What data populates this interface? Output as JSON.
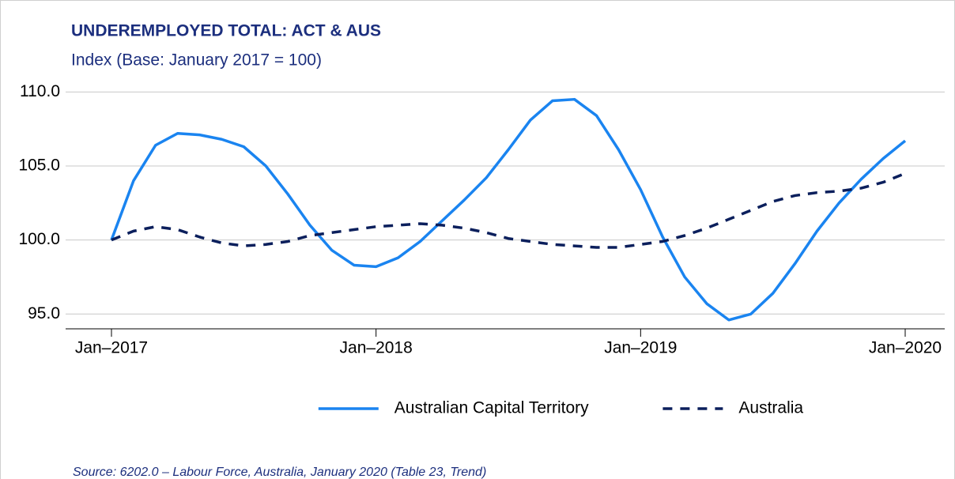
{
  "chart_data": {
    "type": "line",
    "title": "UNDEREMPLOYED TOTAL: ACT & AUS",
    "subtitle": "Index (Base: January 2017 = 100)",
    "source": "Source: 6202.0 – Labour Force, Australia, January 2020 (Table 23, Trend)",
    "categories": [
      "Jan–2017",
      null,
      null,
      null,
      null,
      null,
      null,
      null,
      null,
      null,
      null,
      null,
      "Jan–2018",
      null,
      null,
      null,
      null,
      null,
      null,
      null,
      null,
      null,
      null,
      null,
      "Jan–2019",
      null,
      null,
      null,
      null,
      null,
      null,
      null,
      null,
      null,
      null,
      null,
      "Jan–2020"
    ],
    "series": [
      {
        "name": "Australian Capital Territory",
        "color": "#1a84f0",
        "dashed": false,
        "values": [
          100.0,
          104.0,
          106.4,
          107.2,
          107.1,
          106.8,
          106.3,
          105.0,
          103.1,
          101.0,
          99.3,
          98.3,
          98.2,
          98.8,
          99.9,
          101.3,
          102.7,
          104.2,
          106.1,
          108.1,
          109.4,
          109.5,
          108.4,
          106.1,
          103.4,
          100.2,
          97.5,
          95.7,
          94.6,
          95.0,
          96.4,
          98.4,
          100.6,
          102.5,
          104.1,
          105.5,
          106.7
        ]
      },
      {
        "name": "Australia",
        "color": "#0b1f5c",
        "dashed": true,
        "values": [
          100.0,
          100.6,
          100.9,
          100.7,
          100.2,
          99.8,
          99.6,
          99.7,
          99.9,
          100.3,
          100.5,
          100.7,
          100.9,
          101.0,
          101.1,
          101.0,
          100.8,
          100.5,
          100.1,
          99.9,
          99.7,
          99.6,
          99.5,
          99.5,
          99.7,
          99.9,
          100.3,
          100.8,
          101.4,
          102.0,
          102.6,
          103.0,
          103.2,
          103.3,
          103.5,
          103.9,
          104.5
        ]
      }
    ],
    "ylim": [
      94,
      110.6
    ],
    "yticks": [
      {
        "value": 95,
        "label": "95.0"
      },
      {
        "value": 100,
        "label": "100.0"
      },
      {
        "value": 105,
        "label": "105.0"
      },
      {
        "value": 110,
        "label": "110.0"
      }
    ],
    "grid": true,
    "legend": "bottom"
  }
}
